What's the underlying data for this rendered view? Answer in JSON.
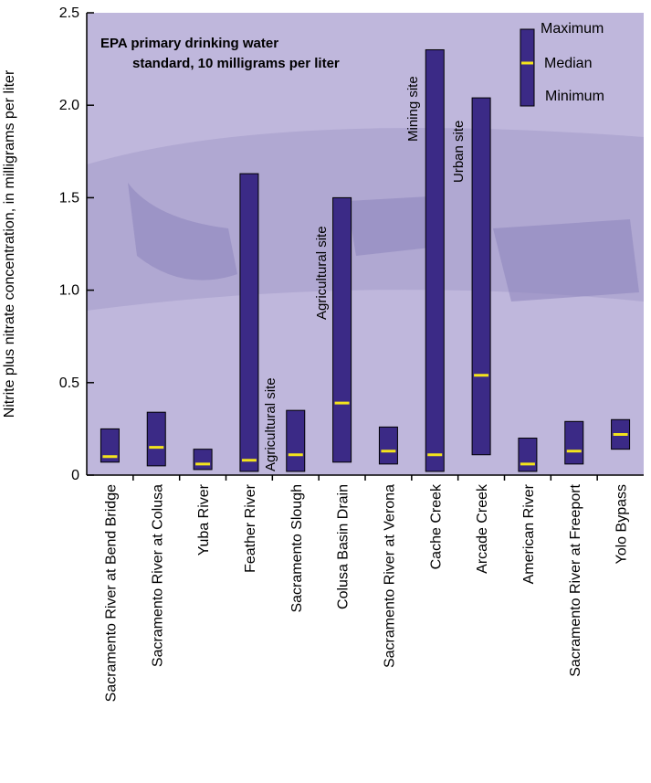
{
  "chart_data": {
    "type": "range",
    "y_label": "Nitrite plus nitrate concentration, in milligrams per liter",
    "categories": [
      "Sacramento River at Bend Bridge",
      "Sacramento River at Colusa",
      "Yuba River",
      "Feather River",
      "Sacramento Slough",
      "Colusa Basin Drain",
      "Sacramento River at Verona",
      "Cache Creek",
      "Arcade Creek",
      "American River",
      "Sacramento River at Freeport",
      "Yolo Bypass"
    ],
    "series": [
      {
        "name": "Maximum",
        "color": "#3b2a86",
        "values": [
          0.25,
          0.34,
          0.14,
          1.63,
          0.35,
          1.5,
          0.26,
          2.3,
          2.04,
          0.2,
          0.29,
          0.3
        ]
      },
      {
        "name": "Median",
        "color": "#f4e41c",
        "values": [
          0.1,
          0.15,
          0.06,
          0.08,
          0.11,
          0.39,
          0.13,
          0.11,
          0.54,
          0.06,
          0.13,
          0.22
        ]
      },
      {
        "name": "Minimum",
        "color": "#3b2a86",
        "values": [
          0.07,
          0.05,
          0.03,
          0.02,
          0.02,
          0.07,
          0.06,
          0.02,
          0.11,
          0.02,
          0.06,
          0.14
        ]
      }
    ],
    "ylim": [
      0,
      2.5
    ],
    "yticks": [
      0,
      0.5,
      {
        "value": 1,
        "label": "1.0"
      },
      1.5,
      {
        "value": 2,
        "label": "2.0"
      },
      2.5
    ],
    "note": [
      "EPA primary drinking water",
      "standard, 10 milligrams per liter"
    ],
    "annotations": [
      "Agricultural site",
      "Agricultural site",
      "Mining site",
      "Urban site"
    ]
  }
}
